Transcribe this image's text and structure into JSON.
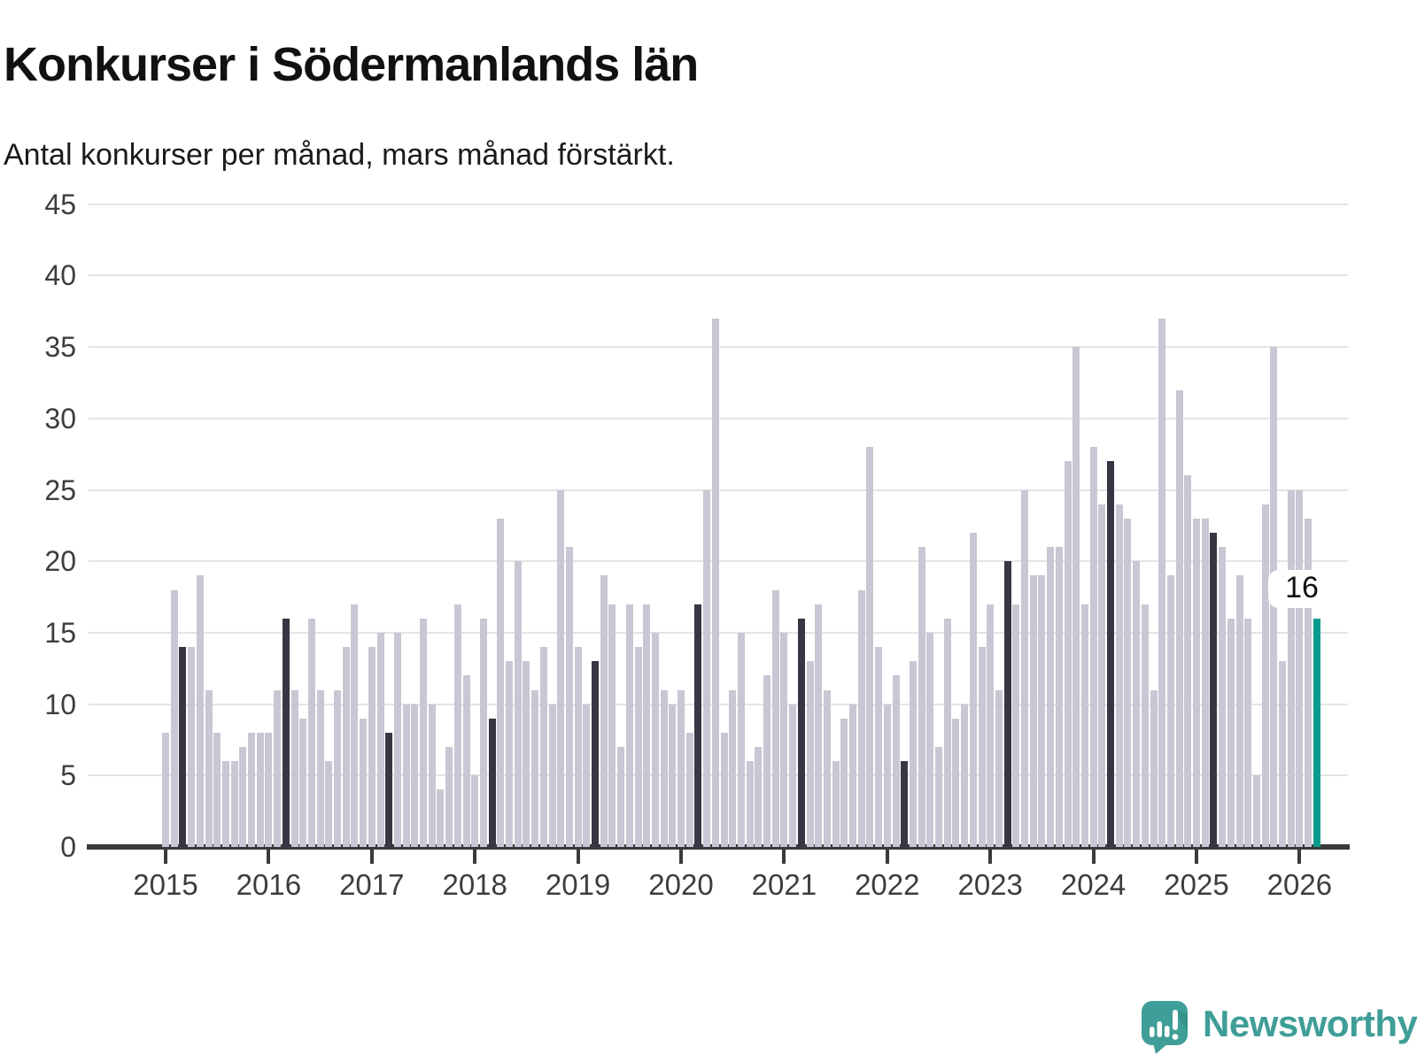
{
  "header": {
    "title": "Konkurser i Södermanlands län",
    "subtitle": "Antal konkurser per månad, mars månad förstärkt."
  },
  "chart_data": {
    "type": "bar",
    "title": "Konkurser i Södermanlands län",
    "subtitle": "Antal konkurser per månad, mars månad förstärkt.",
    "xlabel": "",
    "ylabel": "",
    "ylim": [
      0,
      45
    ],
    "yticks": [
      0,
      5,
      10,
      15,
      20,
      25,
      30,
      35,
      40,
      45
    ],
    "grid": "horizontal",
    "legend": "none",
    "x_tick_labels": [
      "2015",
      "2016",
      "2017",
      "2018",
      "2019",
      "2020",
      "2021",
      "2022",
      "2023",
      "2024",
      "2025",
      "2026"
    ],
    "highlight_note": "March of every year drawn in dark; March 2026 drawn in teal with data label",
    "annotation": {
      "label": "16",
      "month": "mars 2026",
      "value": 16
    },
    "monthly": [
      {
        "year": 2015,
        "values": [
          8,
          18,
          14,
          14,
          19,
          11,
          8,
          6,
          6,
          7,
          8,
          8
        ]
      },
      {
        "year": 2016,
        "values": [
          8,
          11,
          16,
          11,
          9,
          16,
          11,
          6,
          11,
          14,
          17,
          9
        ]
      },
      {
        "year": 2017,
        "values": [
          14,
          15,
          8,
          15,
          10,
          10,
          16,
          10,
          4,
          7,
          17,
          12
        ]
      },
      {
        "year": 2018,
        "values": [
          5,
          16,
          9,
          23,
          13,
          20,
          13,
          11,
          14,
          10,
          25,
          21
        ]
      },
      {
        "year": 2019,
        "values": [
          14,
          10,
          13,
          19,
          17,
          7,
          17,
          14,
          17,
          15,
          11,
          10
        ]
      },
      {
        "year": 2020,
        "values": [
          11,
          8,
          17,
          25,
          37,
          8,
          11,
          15,
          6,
          7,
          12,
          18
        ]
      },
      {
        "year": 2021,
        "values": [
          15,
          10,
          16,
          13,
          17,
          11,
          6,
          9,
          10,
          18,
          28,
          14
        ]
      },
      {
        "year": 2022,
        "values": [
          10,
          12,
          6,
          13,
          21,
          15,
          7,
          16,
          9,
          10,
          22,
          14
        ]
      },
      {
        "year": 2023,
        "values": [
          17,
          11,
          20,
          17,
          25,
          19,
          19,
          21,
          21,
          27,
          35,
          17
        ]
      },
      {
        "year": 2024,
        "values": [
          28,
          24,
          27,
          24,
          23,
          20,
          17,
          11,
          37,
          19,
          32,
          26
        ]
      },
      {
        "year": 2025,
        "values": [
          23,
          23,
          22,
          21,
          16,
          19,
          16,
          5,
          24,
          35,
          13,
          25
        ]
      },
      {
        "year": 2026,
        "values": [
          25,
          23,
          16
        ]
      }
    ]
  },
  "colors": {
    "bar_default": "#c9c7d3",
    "bar_march": "#373743",
    "bar_current": "#089c90",
    "axis": "#3a3a3a",
    "grid": "#e4e4e6",
    "label_text": "#3d3d3d",
    "brand_teal": "#3f9e97"
  },
  "logo": {
    "text": "Newsworthy"
  }
}
